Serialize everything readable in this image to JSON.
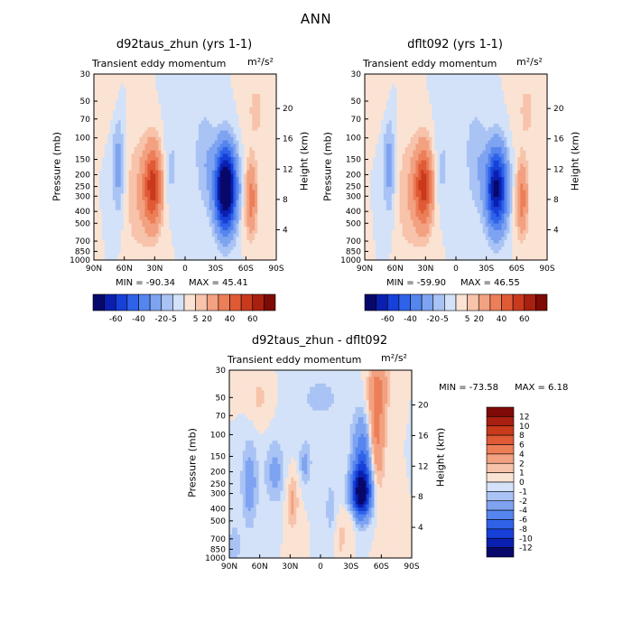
{
  "figure": {
    "title": "ANN"
  },
  "pressure_ticks": [
    "30",
    "50",
    "70",
    "100",
    "150",
    "200",
    "250",
    "300",
    "400",
    "500",
    "700",
    "850",
    "1000"
  ],
  "pressure_values": [
    30,
    50,
    70,
    100,
    150,
    200,
    250,
    300,
    400,
    500,
    700,
    850,
    1000
  ],
  "height_ticks": [
    "20",
    "16",
    "12",
    "8",
    "4"
  ],
  "lat_ticks": [
    "90N",
    "60N",
    "30N",
    "0",
    "30S",
    "60S",
    "90S"
  ],
  "panels": [
    {
      "id": "p1",
      "title": "d92taus_zhun (yrs 1-1)",
      "subtitle_left": "Transient eddy momentum",
      "units": "m²/s²",
      "ylabel": "Pressure (mb)",
      "ylabel_right": "Height (km)",
      "min_label": "MIN = -90.34",
      "max_label": "MAX = 45.41",
      "colorbar_labels": [
        "-60",
        "-40",
        "-20",
        "-5",
        "5",
        "20",
        "40",
        "60"
      ]
    },
    {
      "id": "p2",
      "title": "dflt092 (yrs 1-1)",
      "subtitle_left": "Transient eddy momentum",
      "units": "m²/s²",
      "ylabel": "Pressure (mb)",
      "ylabel_right": "Height (km)",
      "min_label": "MIN = -59.90",
      "max_label": "MAX = 46.55",
      "colorbar_labels": [
        "-60",
        "-40",
        "-20",
        "-5",
        "5",
        "20",
        "40",
        "60"
      ]
    },
    {
      "id": "p3",
      "title": "d92taus_zhun - dflt092",
      "subtitle_left": "Transient eddy momentum",
      "units": "m²/s²",
      "ylabel": "Pressure (mb)",
      "ylabel_right": "Height (km)",
      "min_label": "MIN = -73.58",
      "max_label": "MAX =    6.18",
      "colorbar_labels": [
        "12",
        "10",
        "8",
        "6",
        "4",
        "2",
        "1",
        "0",
        "-1",
        "-2",
        "-4",
        "-6",
        "-8",
        "-10",
        "-12"
      ]
    }
  ],
  "colors": {
    "diverging_16": [
      "#08086b",
      "#0a1fb0",
      "#1640d8",
      "#2f62e8",
      "#5585ee",
      "#7ea3f1",
      "#a9c3f4",
      "#d3e2f8",
      "#fbe3d4",
      "#f7c3aa",
      "#f2a181",
      "#ec7e58",
      "#e05a36",
      "#c93a1c",
      "#a82010",
      "#7e0a06"
    ]
  },
  "chart_data": [
    {
      "type": "heatmap",
      "title": "d92taus_zhun (yrs 1-1)",
      "subtitle": "Transient eddy momentum",
      "units": "m²/s²",
      "xlabel": "",
      "ylabel": "Pressure (mb)",
      "ylabel_right": "Height (km)",
      "x_ticks": [
        "90N",
        "60N",
        "30N",
        "0",
        "30S",
        "60S",
        "90S"
      ],
      "y_ticks": [
        30,
        50,
        70,
        100,
        150,
        200,
        250,
        300,
        400,
        500,
        700,
        850,
        1000
      ],
      "y_scale": "log",
      "y_reversed": true,
      "min": -90.34,
      "max": 45.41,
      "contour_levels": [
        -60,
        -50,
        -40,
        -30,
        -20,
        -10,
        -5,
        0,
        5,
        10,
        20,
        30,
        40,
        50,
        60
      ],
      "features": [
        {
          "lat": -40,
          "pressure": 250,
          "value": -90.34
        },
        {
          "lat": 33,
          "pressure": 250,
          "value": 45.41
        },
        {
          "lat": 65,
          "pressure": 200,
          "value": -15
        },
        {
          "lat": -65,
          "pressure": 300,
          "value": 25
        }
      ]
    },
    {
      "type": "heatmap",
      "title": "dflt092 (yrs 1-1)",
      "subtitle": "Transient eddy momentum",
      "units": "m²/s²",
      "xlabel": "",
      "ylabel": "Pressure (mb)",
      "ylabel_right": "Height (km)",
      "x_ticks": [
        "90N",
        "60N",
        "30N",
        "0",
        "30S",
        "60S",
        "90S"
      ],
      "y_ticks": [
        30,
        50,
        70,
        100,
        150,
        200,
        250,
        300,
        400,
        500,
        700,
        850,
        1000
      ],
      "y_scale": "log",
      "y_reversed": true,
      "min": -59.9,
      "max": 46.55,
      "contour_levels": [
        -60,
        -50,
        -40,
        -30,
        -20,
        -10,
        -5,
        0,
        5,
        10,
        20,
        30,
        40,
        50,
        60
      ],
      "features": [
        {
          "lat": -38,
          "pressure": 250,
          "value": -59.9
        },
        {
          "lat": 33,
          "pressure": 250,
          "value": 46.55
        },
        {
          "lat": 65,
          "pressure": 200,
          "value": -15
        },
        {
          "lat": -65,
          "pressure": 300,
          "value": 25
        }
      ]
    },
    {
      "type": "heatmap",
      "title": "d92taus_zhun - dflt092",
      "subtitle": "Transient eddy momentum",
      "units": "m²/s²",
      "xlabel": "",
      "ylabel": "Pressure (mb)",
      "ylabel_right": "Height (km)",
      "x_ticks": [
        "90N",
        "60N",
        "30N",
        "0",
        "30S",
        "60S",
        "90S"
      ],
      "y_ticks": [
        30,
        50,
        70,
        100,
        150,
        200,
        250,
        300,
        400,
        500,
        700,
        850,
        1000
      ],
      "y_scale": "log",
      "y_reversed": true,
      "min": -73.58,
      "max": 6.18,
      "contour_levels": [
        -12,
        -10,
        -8,
        -6,
        -4,
        -2,
        -1,
        0,
        1,
        2,
        4,
        6,
        8,
        10,
        12
      ],
      "features": [
        {
          "lat": -40,
          "pressure": 300,
          "value": -73.58
        },
        {
          "lat": -55,
          "pressure": 150,
          "value": 6.18
        }
      ]
    }
  ]
}
